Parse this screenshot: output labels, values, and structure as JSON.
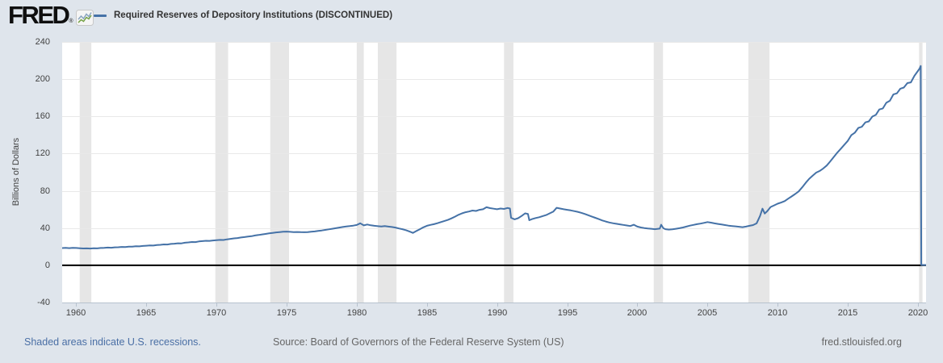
{
  "header": {
    "logo_text": "FRED",
    "logo_reg": "®",
    "legend_label": "Required Reserves of Depository Institutions (DISCONTINUED)"
  },
  "footer": {
    "recession_note": "Shaded areas indicate U.S. recessions.",
    "source": "Source: Board of Governors of the Federal Reserve System (US)",
    "site": "fred.stlouisfed.org"
  },
  "colors": {
    "background": "#dfe5ec",
    "plot_background": "#ffffff",
    "line": "#4572a7",
    "recession_band": "#e6e6e6",
    "gridline": "#e9e9e9",
    "zero_line": "#000000",
    "axis_line": "#b7c2ce",
    "tick_text": "#424242",
    "legend_text": "#333333",
    "link": "#4a6fa5",
    "footer_text": "#666666"
  },
  "chart_data": {
    "type": "line",
    "title": "Required Reserves of Depository Institutions (DISCONTINUED)",
    "xlabel": "",
    "ylabel": "Billions of Dollars",
    "x_range": [
      1959.0,
      2020.58
    ],
    "y_range": [
      -40,
      240
    ],
    "x_ticks": [
      1960,
      1965,
      1970,
      1975,
      1980,
      1985,
      1990,
      1995,
      2000,
      2005,
      2010,
      2015,
      2020
    ],
    "y_ticks": [
      -40,
      0,
      40,
      80,
      120,
      160,
      200,
      240
    ],
    "grid": "horizontal",
    "legend_position": "top-left",
    "recessions": [
      [
        1960.25,
        1961.08
      ],
      [
        1969.92,
        1970.83
      ],
      [
        1973.83,
        1975.17
      ],
      [
        1980.0,
        1980.5
      ],
      [
        1981.5,
        1982.83
      ],
      [
        1990.5,
        1991.17
      ],
      [
        2001.17,
        2001.83
      ],
      [
        2007.92,
        2009.42
      ],
      [
        2020.08,
        2020.33
      ]
    ],
    "series": [
      {
        "name": "Required Reserves of Depository Institutions (DISCONTINUED)",
        "color": "#4572a7",
        "points": [
          [
            1959.0,
            18.5
          ],
          [
            1959.25,
            18.8
          ],
          [
            1959.5,
            18.4
          ],
          [
            1959.75,
            18.7
          ],
          [
            1960.0,
            18.6
          ],
          [
            1960.25,
            18.3
          ],
          [
            1960.5,
            18.1
          ],
          [
            1960.75,
            18.2
          ],
          [
            1961.0,
            18.0
          ],
          [
            1961.25,
            18.3
          ],
          [
            1961.5,
            18.2
          ],
          [
            1961.75,
            18.6
          ],
          [
            1962.0,
            18.7
          ],
          [
            1962.25,
            19.0
          ],
          [
            1962.5,
            18.9
          ],
          [
            1962.75,
            19.3
          ],
          [
            1963.0,
            19.4
          ],
          [
            1963.25,
            19.7
          ],
          [
            1963.5,
            19.6
          ],
          [
            1963.75,
            20.0
          ],
          [
            1964.0,
            20.1
          ],
          [
            1964.25,
            20.4
          ],
          [
            1964.5,
            20.3
          ],
          [
            1964.75,
            20.8
          ],
          [
            1965.0,
            21.0
          ],
          [
            1965.25,
            21.3
          ],
          [
            1965.5,
            21.2
          ],
          [
            1965.75,
            21.8
          ],
          [
            1966.0,
            22.0
          ],
          [
            1966.25,
            22.4
          ],
          [
            1966.5,
            22.3
          ],
          [
            1966.75,
            22.9
          ],
          [
            1967.0,
            23.2
          ],
          [
            1967.25,
            23.6
          ],
          [
            1967.5,
            23.5
          ],
          [
            1967.75,
            24.2
          ],
          [
            1968.0,
            24.6
          ],
          [
            1968.25,
            25.0
          ],
          [
            1968.5,
            24.9
          ],
          [
            1968.75,
            25.6
          ],
          [
            1969.0,
            26.0
          ],
          [
            1969.25,
            26.3
          ],
          [
            1969.5,
            26.2
          ],
          [
            1969.75,
            26.7
          ],
          [
            1970.0,
            27.0
          ],
          [
            1970.25,
            27.3
          ],
          [
            1970.5,
            27.2
          ],
          [
            1970.75,
            27.9
          ],
          [
            1971.0,
            28.4
          ],
          [
            1971.25,
            28.9
          ],
          [
            1971.5,
            29.3
          ],
          [
            1971.75,
            29.9
          ],
          [
            1972.0,
            30.3
          ],
          [
            1972.25,
            30.8
          ],
          [
            1972.5,
            31.3
          ],
          [
            1972.75,
            32.0
          ],
          [
            1973.0,
            32.6
          ],
          [
            1973.25,
            33.2
          ],
          [
            1973.5,
            33.7
          ],
          [
            1973.75,
            34.3
          ],
          [
            1974.0,
            34.8
          ],
          [
            1974.25,
            35.3
          ],
          [
            1974.5,
            35.7
          ],
          [
            1974.75,
            36.1
          ],
          [
            1975.0,
            36.2
          ],
          [
            1975.25,
            35.9
          ],
          [
            1975.5,
            35.7
          ],
          [
            1975.75,
            35.8
          ],
          [
            1976.0,
            35.6
          ],
          [
            1976.25,
            35.5
          ],
          [
            1976.5,
            35.7
          ],
          [
            1976.75,
            36.1
          ],
          [
            1977.0,
            36.4
          ],
          [
            1977.25,
            36.9
          ],
          [
            1977.5,
            37.4
          ],
          [
            1977.75,
            38.0
          ],
          [
            1978.0,
            38.6
          ],
          [
            1978.25,
            39.2
          ],
          [
            1978.5,
            39.8
          ],
          [
            1978.75,
            40.5
          ],
          [
            1979.0,
            41.1
          ],
          [
            1979.25,
            41.7
          ],
          [
            1979.5,
            42.1
          ],
          [
            1979.75,
            42.6
          ],
          [
            1980.0,
            43.3
          ],
          [
            1980.25,
            45.1
          ],
          [
            1980.5,
            42.9
          ],
          [
            1980.75,
            43.8
          ],
          [
            1981.0,
            43.0
          ],
          [
            1981.25,
            42.4
          ],
          [
            1981.5,
            42.0
          ],
          [
            1981.75,
            41.7
          ],
          [
            1982.0,
            42.1
          ],
          [
            1982.25,
            41.6
          ],
          [
            1982.5,
            41.1
          ],
          [
            1982.75,
            40.5
          ],
          [
            1983.0,
            39.6
          ],
          [
            1983.25,
            38.8
          ],
          [
            1983.5,
            37.8
          ],
          [
            1983.75,
            36.4
          ],
          [
            1984.0,
            34.8
          ],
          [
            1984.25,
            36.8
          ],
          [
            1984.5,
            38.8
          ],
          [
            1984.75,
            40.8
          ],
          [
            1985.0,
            42.4
          ],
          [
            1985.25,
            43.4
          ],
          [
            1985.5,
            44.2
          ],
          [
            1985.75,
            45.2
          ],
          [
            1986.0,
            46.4
          ],
          [
            1986.25,
            47.6
          ],
          [
            1986.5,
            48.8
          ],
          [
            1986.75,
            50.4
          ],
          [
            1987.0,
            52.2
          ],
          [
            1987.25,
            54.2
          ],
          [
            1987.5,
            55.8
          ],
          [
            1987.75,
            57.0
          ],
          [
            1988.0,
            57.8
          ],
          [
            1988.25,
            58.8
          ],
          [
            1988.5,
            58.4
          ],
          [
            1988.75,
            59.6
          ],
          [
            1989.0,
            60.2
          ],
          [
            1989.25,
            62.4
          ],
          [
            1989.5,
            61.4
          ],
          [
            1989.75,
            60.8
          ],
          [
            1990.0,
            60.2
          ],
          [
            1990.25,
            61.0
          ],
          [
            1990.5,
            60.6
          ],
          [
            1990.75,
            61.6
          ],
          [
            1990.92,
            61.0
          ],
          [
            1991.0,
            51.0
          ],
          [
            1991.25,
            49.4
          ],
          [
            1991.5,
            50.6
          ],
          [
            1991.75,
            53.0
          ],
          [
            1992.0,
            55.8
          ],
          [
            1992.2,
            55.2
          ],
          [
            1992.3,
            48.4
          ],
          [
            1992.5,
            49.6
          ],
          [
            1992.75,
            50.8
          ],
          [
            1993.0,
            51.6
          ],
          [
            1993.25,
            52.8
          ],
          [
            1993.5,
            54.0
          ],
          [
            1993.75,
            55.8
          ],
          [
            1994.0,
            57.6
          ],
          [
            1994.25,
            61.8
          ],
          [
            1994.5,
            61.0
          ],
          [
            1994.75,
            60.2
          ],
          [
            1995.0,
            59.6
          ],
          [
            1995.25,
            59.0
          ],
          [
            1995.5,
            58.2
          ],
          [
            1995.75,
            57.4
          ],
          [
            1996.0,
            56.4
          ],
          [
            1996.25,
            55.2
          ],
          [
            1996.5,
            53.8
          ],
          [
            1996.75,
            52.4
          ],
          [
            1997.0,
            51.0
          ],
          [
            1997.25,
            49.6
          ],
          [
            1997.5,
            48.2
          ],
          [
            1997.75,
            47.0
          ],
          [
            1998.0,
            46.0
          ],
          [
            1998.25,
            45.2
          ],
          [
            1998.5,
            44.6
          ],
          [
            1998.75,
            44.0
          ],
          [
            1999.0,
            43.4
          ],
          [
            1999.25,
            42.8
          ],
          [
            1999.5,
            42.2
          ],
          [
            1999.75,
            43.6
          ],
          [
            2000.0,
            41.6
          ],
          [
            2000.25,
            40.6
          ],
          [
            2000.5,
            40.0
          ],
          [
            2000.75,
            39.6
          ],
          [
            2001.0,
            39.2
          ],
          [
            2001.25,
            38.8
          ],
          [
            2001.6,
            39.4
          ],
          [
            2001.7,
            43.6
          ],
          [
            2001.85,
            39.8
          ],
          [
            2002.0,
            38.8
          ],
          [
            2002.25,
            38.4
          ],
          [
            2002.5,
            38.6
          ],
          [
            2002.75,
            39.2
          ],
          [
            2003.0,
            39.8
          ],
          [
            2003.25,
            40.6
          ],
          [
            2003.5,
            41.6
          ],
          [
            2003.75,
            42.6
          ],
          [
            2004.0,
            43.4
          ],
          [
            2004.25,
            44.2
          ],
          [
            2004.5,
            44.8
          ],
          [
            2004.75,
            45.6
          ],
          [
            2005.0,
            46.4
          ],
          [
            2005.25,
            45.8
          ],
          [
            2005.5,
            45.0
          ],
          [
            2005.75,
            44.4
          ],
          [
            2006.0,
            43.8
          ],
          [
            2006.25,
            43.2
          ],
          [
            2006.5,
            42.6
          ],
          [
            2006.75,
            42.2
          ],
          [
            2007.0,
            41.8
          ],
          [
            2007.25,
            41.4
          ],
          [
            2007.5,
            41.0
          ],
          [
            2007.75,
            41.6
          ],
          [
            2008.0,
            42.4
          ],
          [
            2008.25,
            43.2
          ],
          [
            2008.5,
            45.0
          ],
          [
            2008.75,
            53.0
          ],
          [
            2008.92,
            60.8
          ],
          [
            2009.08,
            55.6
          ],
          [
            2009.25,
            58.0
          ],
          [
            2009.5,
            62.6
          ],
          [
            2009.75,
            64.4
          ],
          [
            2010.0,
            66.2
          ],
          [
            2010.25,
            67.4
          ],
          [
            2010.5,
            69.0
          ],
          [
            2010.75,
            71.6
          ],
          [
            2011.0,
            74.0
          ],
          [
            2011.25,
            76.6
          ],
          [
            2011.5,
            79.4
          ],
          [
            2011.75,
            83.8
          ],
          [
            2012.0,
            88.6
          ],
          [
            2012.25,
            93.0
          ],
          [
            2012.5,
            96.4
          ],
          [
            2012.75,
            99.6
          ],
          [
            2013.0,
            101.4
          ],
          [
            2013.25,
            104.0
          ],
          [
            2013.5,
            107.2
          ],
          [
            2013.75,
            111.6
          ],
          [
            2014.0,
            116.4
          ],
          [
            2014.25,
            121.0
          ],
          [
            2014.5,
            125.2
          ],
          [
            2014.75,
            129.4
          ],
          [
            2015.0,
            133.6
          ],
          [
            2015.25,
            139.8
          ],
          [
            2015.5,
            142.4
          ],
          [
            2015.75,
            147.6
          ],
          [
            2016.0,
            148.8
          ],
          [
            2016.25,
            153.6
          ],
          [
            2016.5,
            154.6
          ],
          [
            2016.75,
            159.8
          ],
          [
            2017.0,
            161.6
          ],
          [
            2017.25,
            167.4
          ],
          [
            2017.5,
            168.6
          ],
          [
            2017.75,
            174.6
          ],
          [
            2018.0,
            176.8
          ],
          [
            2018.25,
            183.6
          ],
          [
            2018.5,
            184.8
          ],
          [
            2018.75,
            189.8
          ],
          [
            2019.0,
            191.0
          ],
          [
            2019.25,
            195.8
          ],
          [
            2019.5,
            196.6
          ],
          [
            2019.75,
            203.6
          ],
          [
            2020.0,
            208.8
          ],
          [
            2020.12,
            211.4
          ],
          [
            2020.2,
            214.2
          ],
          [
            2020.24,
            0.3
          ],
          [
            2020.4,
            0.3
          ],
          [
            2020.58,
            0.3
          ]
        ]
      }
    ]
  }
}
